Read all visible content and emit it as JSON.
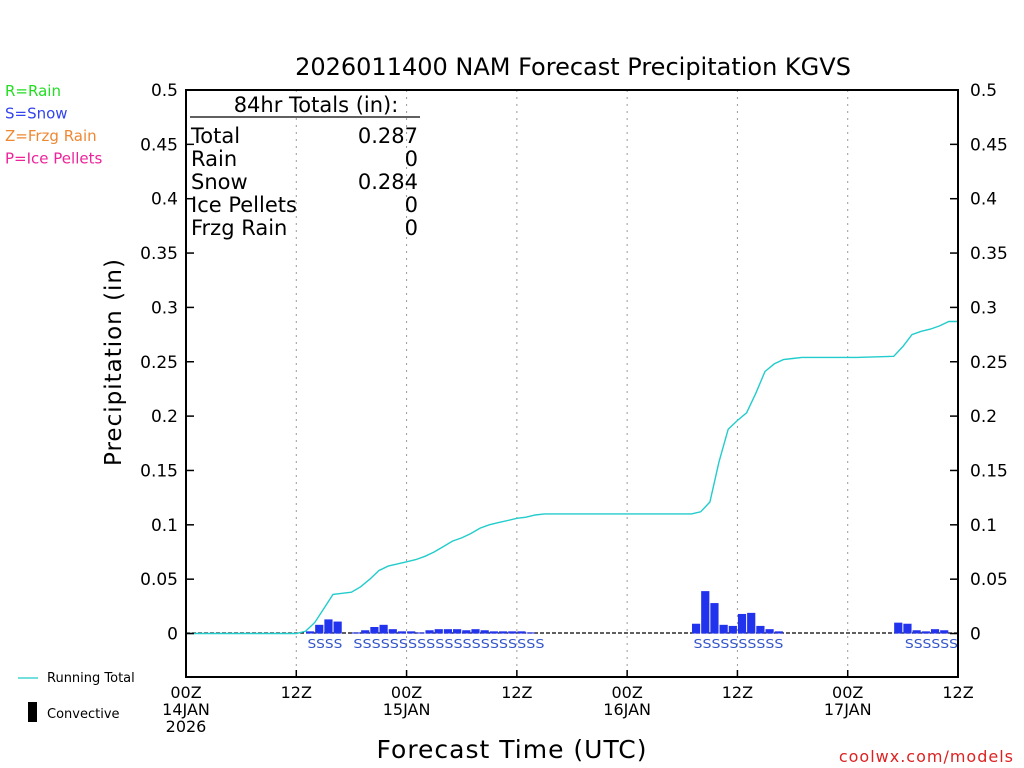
{
  "chart_data": {
    "type": "bar+line",
    "title": "2026011400 NAM Forecast Precipitation KGVS",
    "xlabel": "Forecast Time (UTC)",
    "ylabel": "Precipitation (in)",
    "ylim": [
      -0.04,
      0.5
    ],
    "xlim_hours": [
      0,
      84
    ],
    "y_ticks": [
      {
        "value": 0.5,
        "label": "0.5"
      },
      {
        "value": 0.45,
        "label": "0.45"
      },
      {
        "value": 0.4,
        "label": "0.4"
      },
      {
        "value": 0.35,
        "label": "0.35"
      },
      {
        "value": 0.3,
        "label": "0.3"
      },
      {
        "value": 0.25,
        "label": "0.25"
      },
      {
        "value": 0.2,
        "label": "0.2"
      },
      {
        "value": 0.15,
        "label": "0.15"
      },
      {
        "value": 0.1,
        "label": "0.1"
      },
      {
        "value": 0.05,
        "label": "0.05"
      },
      {
        "value": 0,
        "label": "0"
      }
    ],
    "x_ticks": [
      {
        "hour": 0,
        "line1": "00Z",
        "line2": "14JAN",
        "line3": "2026"
      },
      {
        "hour": 12,
        "line1": "12Z",
        "line2": "",
        "line3": ""
      },
      {
        "hour": 24,
        "line1": "00Z",
        "line2": "15JAN",
        "line3": ""
      },
      {
        "hour": 36,
        "line1": "12Z",
        "line2": "",
        "line3": ""
      },
      {
        "hour": 48,
        "line1": "00Z",
        "line2": "16JAN",
        "line3": ""
      },
      {
        "hour": 60,
        "line1": "12Z",
        "line2": "",
        "line3": ""
      },
      {
        "hour": 72,
        "line1": "00Z",
        "line2": "17JAN",
        "line3": ""
      },
      {
        "hour": 84,
        "line1": "12Z",
        "line2": "",
        "line3": ""
      }
    ],
    "gridlines_x_hours": [
      12,
      24,
      36,
      48,
      60,
      72
    ],
    "totals_box": {
      "heading": "84hr Totals (in):",
      "rows": [
        {
          "label": "Total",
          "value": "0.287"
        },
        {
          "label": "Rain",
          "value": "0"
        },
        {
          "label": "Snow",
          "value": "0.284"
        },
        {
          "label": "Ice Pellets",
          "value": "0"
        },
        {
          "label": "Frzg Rain",
          "value": "0"
        }
      ]
    },
    "legend_ptype": [
      {
        "text": "R=Rain",
        "color": "#22dd22"
      },
      {
        "text": "S=Snow",
        "color": "#3344ee"
      },
      {
        "text": "Z=Frzg Rain",
        "color": "#ee8833"
      },
      {
        "text": "P=Ice Pellets",
        "color": "#ee2299"
      }
    ],
    "legend_series": [
      {
        "text": "Running Total",
        "kind": "line",
        "color": "#22cccc"
      },
      {
        "text": "Convective",
        "kind": "bar",
        "color": "#000000"
      }
    ],
    "hourly_precip": {
      "name": "Hourly Precipitation",
      "color": "#2233ee",
      "hours": [
        14,
        15,
        16,
        17,
        19,
        20,
        21,
        22,
        23,
        24,
        25,
        26,
        27,
        28,
        29,
        30,
        31,
        32,
        33,
        34,
        35,
        36,
        37,
        38,
        56,
        57,
        58,
        59,
        60,
        61,
        62,
        63,
        64,
        65,
        78,
        79,
        80,
        81,
        82,
        83
      ],
      "values": [
        0.002,
        0.008,
        0.013,
        0.011,
        0.001,
        0.003,
        0.006,
        0.008,
        0.004,
        0.002,
        0.002,
        0.001,
        0.003,
        0.004,
        0.004,
        0.004,
        0.003,
        0.004,
        0.003,
        0.002,
        0.002,
        0.002,
        0.002,
        0.001,
        0.009,
        0.039,
        0.028,
        0.008,
        0.007,
        0.018,
        0.019,
        0.007,
        0.004,
        0.002,
        0.01,
        0.009,
        0.003,
        0.002,
        0.004,
        0.003
      ]
    },
    "running_total": {
      "name": "Running Total",
      "color": "#22cccc",
      "hours": [
        0,
        12,
        13,
        14,
        15,
        16,
        17,
        18,
        19,
        20,
        21,
        22,
        23,
        24,
        25,
        26,
        27,
        28,
        29,
        30,
        31,
        32,
        33,
        34,
        35,
        36,
        37,
        38,
        39,
        40,
        55,
        56,
        57,
        58,
        59,
        60,
        61,
        62,
        63,
        64,
        65,
        66,
        67,
        70,
        73,
        77,
        78,
        79,
        80,
        81,
        82,
        83,
        84
      ],
      "values": [
        0,
        0,
        0.002,
        0.01,
        0.023,
        0.036,
        0.037,
        0.038,
        0.043,
        0.05,
        0.058,
        0.062,
        0.064,
        0.066,
        0.068,
        0.071,
        0.075,
        0.08,
        0.085,
        0.088,
        0.092,
        0.097,
        0.1,
        0.102,
        0.104,
        0.106,
        0.107,
        0.109,
        0.11,
        0.11,
        0.11,
        0.112,
        0.121,
        0.158,
        0.188,
        0.196,
        0.203,
        0.221,
        0.241,
        0.248,
        0.252,
        0.253,
        0.254,
        0.254,
        0.254,
        0.255,
        0.264,
        0.275,
        0.278,
        0.28,
        0.283,
        0.287,
        0.287
      ]
    },
    "ptype_labels": [
      {
        "text": "SSSS",
        "start_hour": 13,
        "end_hour": 17
      },
      {
        "text": "SSSSSSSSSSSSSSSSSSSSS",
        "start_hour": 18,
        "end_hour": 39
      },
      {
        "text": "SSSSSSSSSS",
        "start_hour": 55,
        "end_hour": 65
      },
      {
        "text": "SSSSSS",
        "start_hour": 78,
        "end_hour": 84
      }
    ],
    "ptype_label_color": "#3355cc"
  },
  "footer": {
    "credit": "coolwx.com/models",
    "credit_color": "#dd2222"
  }
}
